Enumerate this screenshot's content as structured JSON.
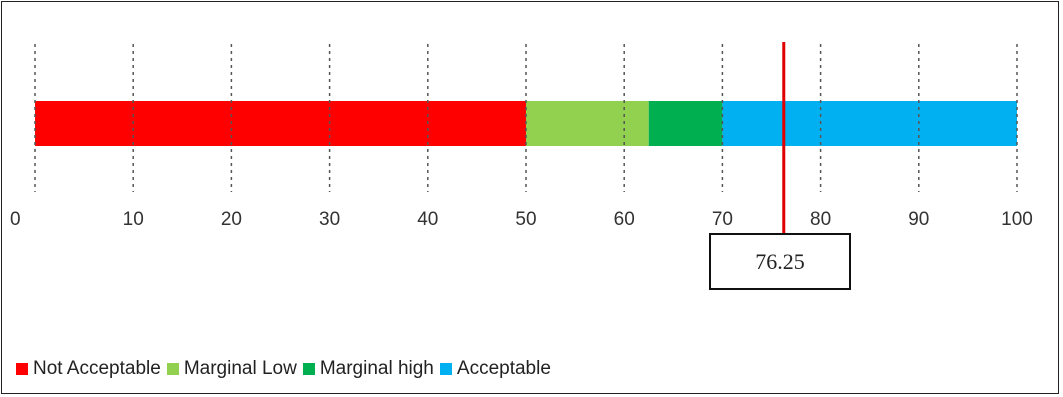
{
  "chart_data": {
    "type": "bar",
    "orientation": "horizontal",
    "stacked": true,
    "xlim": [
      0,
      100
    ],
    "ticks": [
      0,
      10,
      20,
      30,
      40,
      50,
      60,
      70,
      80,
      90,
      100
    ],
    "tick_labels": [
      "0",
      "10",
      "20",
      "30",
      "40",
      "50",
      "60",
      "70",
      "80",
      "90",
      "100"
    ],
    "segments": [
      {
        "name": "Not Acceptable",
        "start": 0,
        "end": 50,
        "color": "#ff0000"
      },
      {
        "name": "Marginal Low",
        "start": 50,
        "end": 62.5,
        "color": "#92d050"
      },
      {
        "name": "Marginal high",
        "start": 62.5,
        "end": 70,
        "color": "#00b050"
      },
      {
        "name": "Acceptable",
        "start": 70,
        "end": 100,
        "color": "#00b0f0"
      }
    ],
    "marker": {
      "value": 76.25,
      "label": "76.25",
      "color": "#e00000"
    },
    "grid": "dotted vertical at each tick",
    "legend_position": "bottom-left"
  }
}
